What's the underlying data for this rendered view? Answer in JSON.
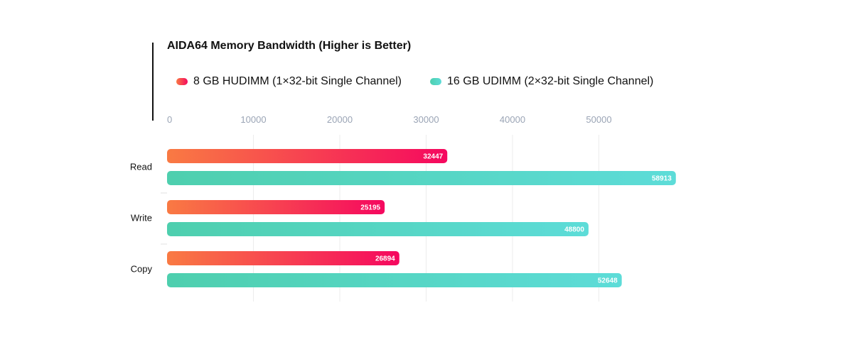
{
  "chart_data": {
    "type": "bar",
    "orientation": "horizontal",
    "title": "AIDA64 Memory Bandwidth (Higher is Better)",
    "xlabel": "",
    "ylabel": "",
    "categories": [
      "Read",
      "Write",
      "Copy"
    ],
    "series": [
      {
        "name": "8 GB HUDIMM (1×32-bit Single Channel)",
        "values": [
          32447,
          25195,
          26894
        ],
        "color_start": "#f97a43",
        "color_end": "#f5085f"
      },
      {
        "name": "16 GB UDIMM (2×32-bit Single Channel)",
        "values": [
          58913,
          48800,
          52648
        ],
        "color_start": "#4ecfae",
        "color_end": "#5ddcd8"
      }
    ],
    "xticks": [
      0,
      10000,
      20000,
      30000,
      40000,
      50000
    ],
    "xtick_labels": [
      "0",
      "10000",
      "20000",
      "30000",
      "40000",
      "50000"
    ],
    "xlim": [
      0,
      60000
    ],
    "grid": true,
    "legend_position": "top",
    "data_labels": true
  }
}
